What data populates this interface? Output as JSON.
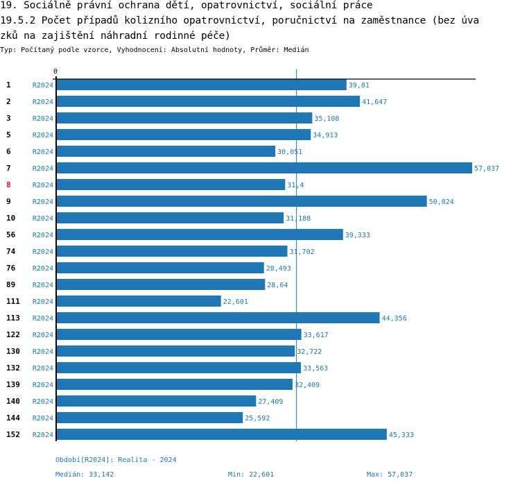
{
  "header": {
    "title_line1": "19. Sociálně právní ochrana dětí, opatrovnictví, sociální práce",
    "title_line2": "19.5.2 Počet případů kolizního opatrovnictví, poručnictví na zaměstnance (bez úva",
    "title_line3": "zků na zajištění náhradní rodinné péče)",
    "meta": "Typ: Počítaný podle vzorce, Vyhodnocení: Absolutní hodnoty, Průměr: Medián"
  },
  "colors": {
    "bar": "#1f77b4",
    "axis": "#000000",
    "highlight_label": "#e8141b",
    "label": "#000000"
  },
  "chart_data": {
    "type": "bar",
    "orientation": "horizontal",
    "x_tick_label": "0",
    "xlim": [
      0,
      57.037
    ],
    "median": 33.142,
    "categories": [
      "1",
      "2",
      "3",
      "5",
      "6",
      "7",
      "8",
      "9",
      "10",
      "56",
      "74",
      "76",
      "89",
      "111",
      "113",
      "122",
      "130",
      "132",
      "139",
      "140",
      "144",
      "152"
    ],
    "highlighted_category": "8",
    "series": [
      {
        "name": "R2024",
        "values": [
          39.81,
          41.647,
          35.108,
          34.913,
          30.051,
          57.037,
          31.4,
          50.824,
          31.188,
          39.333,
          31.702,
          28.493,
          28.64,
          22.601,
          44.356,
          33.617,
          32.722,
          33.563,
          32.409,
          27.409,
          25.592,
          45.333
        ],
        "value_labels": [
          "39,81",
          "41,647",
          "35,108",
          "34,913",
          "30,051",
          "57,037",
          "31,4",
          "50,824",
          "31,188",
          "39,333",
          "31,702",
          "28,493",
          "28,64",
          "22,601",
          "44,356",
          "33,617",
          "32,722",
          "33,563",
          "32,409",
          "27,409",
          "25,592",
          "45,333"
        ]
      }
    ]
  },
  "footer": {
    "period": "Období[R2024]: Realita - 2024",
    "median": "Medián: 33,142",
    "min": "Min: 22,601",
    "max": "Max: 57,037"
  }
}
